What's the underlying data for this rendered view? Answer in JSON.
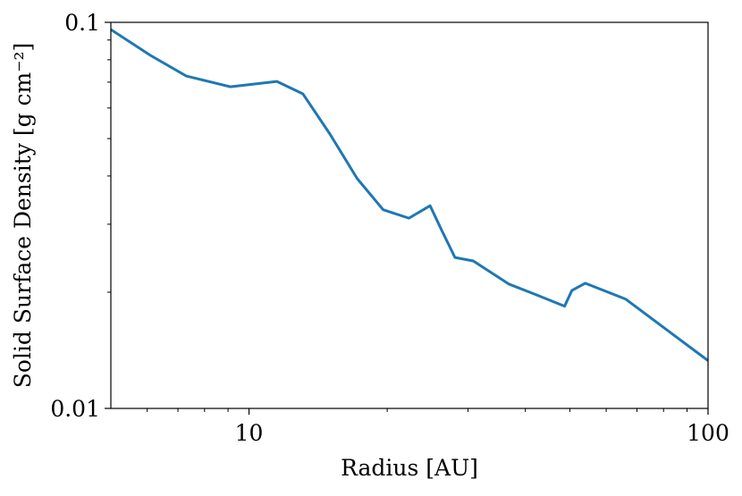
{
  "chart_data": {
    "type": "line",
    "xlabel": "Radius [AU]",
    "ylabel": "Solid Surface Density [g cm⁻²]",
    "log_x": true,
    "log_y": true,
    "xlim": [
      5,
      100
    ],
    "ylim": [
      0.01,
      0.1
    ],
    "xticks": [
      10,
      100
    ],
    "yticks": [
      0.01,
      0.1
    ],
    "xminor_ticks": [
      6,
      7,
      8,
      9,
      20,
      30,
      40,
      50,
      60,
      70,
      80,
      90
    ],
    "yminor_ticks": [
      0.02,
      0.03,
      0.04,
      0.05,
      0.06,
      0.07,
      0.08,
      0.09
    ],
    "x": [
      5,
      6.1,
      7.3,
      9.1,
      11.5,
      13.1,
      15.0,
      17.2,
      19.6,
      22.3,
      24.8,
      26.3,
      28.1,
      30.8,
      36.8,
      42.2,
      48.7,
      50.5,
      54.0,
      66.1,
      100
    ],
    "series": [
      {
        "color": "#1f77b4",
        "values": [
          0.0958,
          0.0821,
          0.0726,
          0.0681,
          0.0703,
          0.0653,
          0.0514,
          0.0394,
          0.0327,
          0.0311,
          0.0335,
          0.0289,
          0.0246,
          0.0241,
          0.021,
          0.0197,
          0.0184,
          0.0202,
          0.0211,
          0.0192,
          0.0133
        ]
      }
    ]
  }
}
